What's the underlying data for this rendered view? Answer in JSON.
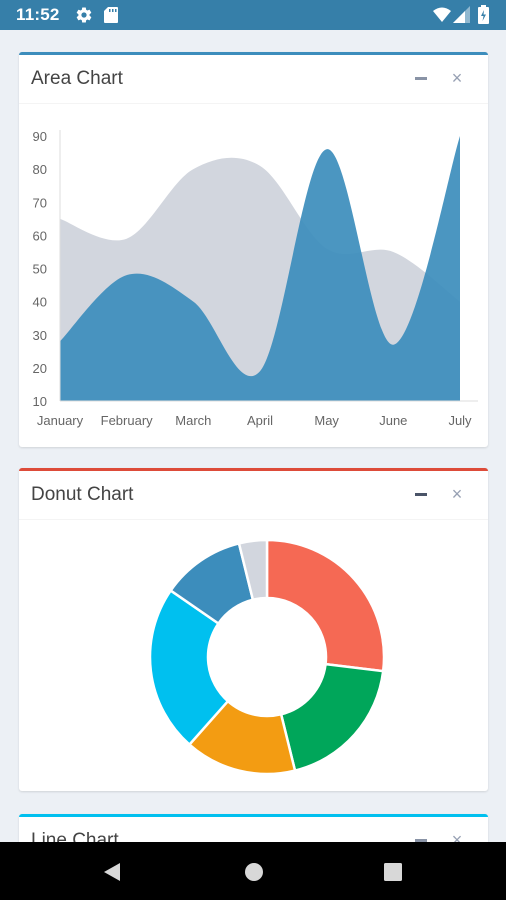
{
  "status_bar": {
    "time": "11:52",
    "icons": [
      "gear-icon",
      "sd-card-icon",
      "wifi-icon",
      "signal-icon",
      "battery-icon"
    ],
    "background": "#367fa9"
  },
  "boxes": {
    "area": {
      "title": "Area Chart",
      "accent": "#3c8dbc"
    },
    "donut": {
      "title": "Donut Chart",
      "accent": "#dd4b39"
    },
    "line": {
      "title": "Line Chart",
      "accent": "#00c0ef"
    }
  },
  "tools": {
    "minimize_icon": "minus-icon",
    "close_icon": "times-icon",
    "close_glyph": "×"
  },
  "chart_data": [
    {
      "type": "area",
      "title": "Area Chart",
      "categories": [
        "January",
        "February",
        "March",
        "April",
        "May",
        "June",
        "July"
      ],
      "ylim": [
        10,
        90
      ],
      "yticks": [
        10,
        20,
        30,
        40,
        50,
        60,
        70,
        80,
        90
      ],
      "grid": false,
      "series": [
        {
          "values": [
            65,
            59,
            80,
            81,
            56,
            55,
            40
          ],
          "color": "#d2d6de"
        },
        {
          "values": [
            28,
            48,
            40,
            19,
            86,
            27,
            90
          ],
          "color": "#3c8dbc"
        }
      ]
    },
    {
      "type": "pie",
      "title": "Donut Chart",
      "donut": true,
      "values": [
        700,
        500,
        400,
        600,
        300,
        100
      ],
      "colors": [
        "#f56954",
        "#00a65a",
        "#f39c12",
        "#00c0ef",
        "#3c8dbc",
        "#d2d6de"
      ]
    }
  ],
  "nav_bar": {
    "buttons": [
      "back-icon",
      "home-icon",
      "recents-icon"
    ]
  }
}
